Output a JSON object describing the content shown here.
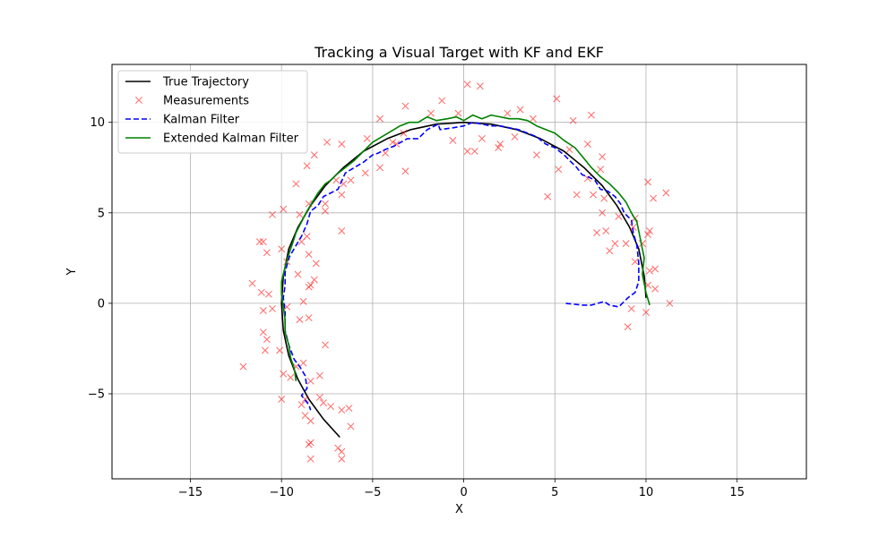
{
  "chart_data": {
    "type": "line",
    "title": "Tracking a Visual Target with KF and EKF",
    "xlabel": "X",
    "ylabel": "Y",
    "xlim": [
      -19.3,
      18.8
    ],
    "ylim": [
      -9.7,
      13.2
    ],
    "xticks": [
      -15,
      -10,
      -5,
      0,
      5,
      10,
      15
    ],
    "yticks": [
      -5,
      0,
      5,
      10
    ],
    "grid": true,
    "legend_position": "upper-left",
    "series": [
      {
        "name": "True Trajectory",
        "kind": "line",
        "color": "#000000",
        "dash": "solid",
        "points": [
          [
            10.0,
            0.3
          ],
          [
            9.9,
            1.5
          ],
          [
            9.6,
            3.0
          ],
          [
            9.1,
            4.2
          ],
          [
            8.4,
            5.4
          ],
          [
            7.6,
            6.5
          ],
          [
            6.6,
            7.5
          ],
          [
            5.5,
            8.4
          ],
          [
            4.2,
            9.1
          ],
          [
            2.9,
            9.6
          ],
          [
            1.5,
            9.9
          ],
          [
            0.0,
            10.0
          ],
          [
            -1.5,
            9.9
          ],
          [
            -2.9,
            9.6
          ],
          [
            -4.2,
            9.1
          ],
          [
            -5.5,
            8.4
          ],
          [
            -6.6,
            7.5
          ],
          [
            -7.6,
            6.5
          ],
          [
            -8.4,
            5.4
          ],
          [
            -9.1,
            4.2
          ],
          [
            -9.6,
            3.0
          ],
          [
            -9.9,
            1.5
          ],
          [
            -10.0,
            0.0
          ],
          [
            -9.9,
            -1.5
          ],
          [
            -9.6,
            -2.9
          ],
          [
            -9.1,
            -4.2
          ],
          [
            -8.5,
            -5.3
          ],
          [
            -7.7,
            -6.4
          ],
          [
            -6.8,
            -7.4
          ]
        ]
      },
      {
        "name": "Measurements",
        "kind": "scatter",
        "color": "#ff0000",
        "marker": "x",
        "points": [
          [
            10.1,
            1.0
          ],
          [
            10.5,
            0.8
          ],
          [
            11.3,
            0.0
          ],
          [
            9.2,
            -0.3
          ],
          [
            9.0,
            -1.3
          ],
          [
            10.0,
            -0.5
          ],
          [
            10.2,
            1.8
          ],
          [
            10.5,
            1.9
          ],
          [
            9.4,
            2.3
          ],
          [
            9.8,
            3.3
          ],
          [
            10.1,
            3.8
          ],
          [
            10.2,
            4.0
          ],
          [
            8.9,
            3.3
          ],
          [
            9.3,
            4.2
          ],
          [
            10.4,
            5.8
          ],
          [
            11.1,
            6.1
          ],
          [
            10.1,
            6.7
          ],
          [
            9.4,
            4.7
          ],
          [
            8.5,
            4.8
          ],
          [
            7.6,
            5.0
          ],
          [
            7.8,
            4.0
          ],
          [
            8.3,
            3.3
          ],
          [
            8.0,
            2.9
          ],
          [
            7.3,
            3.9
          ],
          [
            6.2,
            6.0
          ],
          [
            7.1,
            6.0
          ],
          [
            7.7,
            5.8
          ],
          [
            6.8,
            6.9
          ],
          [
            7.5,
            7.4
          ],
          [
            7.6,
            8.1
          ],
          [
            6.8,
            8.8
          ],
          [
            7.0,
            10.4
          ],
          [
            6.0,
            10.1
          ],
          [
            5.1,
            11.3
          ],
          [
            5.8,
            8.5
          ],
          [
            5.2,
            7.4
          ],
          [
            4.6,
            5.9
          ],
          [
            4.0,
            8.2
          ],
          [
            3.8,
            10.2
          ],
          [
            3.1,
            10.7
          ],
          [
            2.4,
            10.5
          ],
          [
            2.8,
            9.2
          ],
          [
            2.0,
            8.8
          ],
          [
            1.9,
            8.6
          ],
          [
            1.0,
            9.1
          ],
          [
            0.6,
            8.4
          ],
          [
            0.2,
            8.4
          ],
          [
            -0.6,
            9.0
          ],
          [
            -0.3,
            10.5
          ],
          [
            0.9,
            12.0
          ],
          [
            0.2,
            12.1
          ],
          [
            -1.2,
            11.2
          ],
          [
            -1.8,
            10.5
          ],
          [
            -3.2,
            10.9
          ],
          [
            -3.3,
            9.4
          ],
          [
            -3.7,
            8.8
          ],
          [
            -3.2,
            7.3
          ],
          [
            -3.9,
            8.9
          ],
          [
            -4.3,
            8.3
          ],
          [
            -4.6,
            10.2
          ],
          [
            -4.6,
            7.5
          ],
          [
            -5.3,
            9.1
          ],
          [
            -5.4,
            7.2
          ],
          [
            -6.2,
            6.8
          ],
          [
            -6.6,
            6.6
          ],
          [
            -6.7,
            6.0
          ],
          [
            -6.7,
            8.8
          ],
          [
            -7.0,
            6.8
          ],
          [
            -7.5,
            8.9
          ],
          [
            -8.2,
            8.2
          ],
          [
            -8.6,
            7.6
          ],
          [
            -7.6,
            5.5
          ],
          [
            -7.6,
            5.1
          ],
          [
            -8.5,
            5.5
          ],
          [
            -9.2,
            6.6
          ],
          [
            -8.6,
            3.7
          ],
          [
            -8.9,
            3.4
          ],
          [
            -9.0,
            4.9
          ],
          [
            -9.9,
            5.2
          ],
          [
            -10.5,
            4.9
          ],
          [
            -10.0,
            3.0
          ],
          [
            -11.0,
            3.4
          ],
          [
            -11.2,
            3.4
          ],
          [
            -10.8,
            2.8
          ],
          [
            -9.7,
            2.3
          ],
          [
            -9.1,
            1.6
          ],
          [
            -8.4,
            1.0
          ],
          [
            -8.1,
            2.2
          ],
          [
            -8.5,
            2.7
          ],
          [
            -8.2,
            1.3
          ],
          [
            -8.5,
            0.9
          ],
          [
            -8.8,
            0.1
          ],
          [
            -8.5,
            -0.8
          ],
          [
            -9.0,
            -0.9
          ],
          [
            -9.7,
            -0.2
          ],
          [
            -10.5,
            -0.3
          ],
          [
            -10.7,
            0.5
          ],
          [
            -11.1,
            0.6
          ],
          [
            -11.0,
            -0.4
          ],
          [
            -11.6,
            1.1
          ],
          [
            -11.0,
            -1.6
          ],
          [
            -10.8,
            -2.0
          ],
          [
            -10.9,
            -2.6
          ],
          [
            -10.1,
            -2.6
          ],
          [
            -9.9,
            -3.9
          ],
          [
            -9.5,
            -4.1
          ],
          [
            -9.2,
            -3.5
          ],
          [
            -8.8,
            -3.3
          ],
          [
            -8.4,
            -4.3
          ],
          [
            -7.9,
            -4.0
          ],
          [
            -7.6,
            -2.3
          ],
          [
            -7.9,
            -5.2
          ],
          [
            -7.7,
            -5.5
          ],
          [
            -8.7,
            -5.3
          ],
          [
            -8.9,
            -5.6
          ],
          [
            -8.7,
            -6.2
          ],
          [
            -8.4,
            -6.5
          ],
          [
            -7.3,
            -5.7
          ],
          [
            -6.7,
            -5.9
          ],
          [
            -6.3,
            -5.8
          ],
          [
            -6.2,
            -6.8
          ],
          [
            -6.9,
            -8.0
          ],
          [
            -6.7,
            -8.2
          ],
          [
            -6.7,
            -8.6
          ],
          [
            -8.4,
            -7.7
          ],
          [
            -8.5,
            -7.8
          ],
          [
            -8.4,
            -8.6
          ],
          [
            -10.0,
            -5.3
          ],
          [
            -12.1,
            -3.5
          ],
          [
            -6.7,
            4.0
          ]
        ]
      },
      {
        "name": "Kalman Filter",
        "kind": "line",
        "color": "#0000ff",
        "dash": "dashed",
        "points": [
          [
            5.6,
            0.0
          ],
          [
            6.5,
            -0.1
          ],
          [
            7.0,
            -0.1
          ],
          [
            7.7,
            0.1
          ],
          [
            8.0,
            -0.1
          ],
          [
            8.5,
            -0.2
          ],
          [
            9.0,
            0.3
          ],
          [
            9.4,
            0.6
          ],
          [
            9.6,
            1.2
          ],
          [
            9.6,
            2.2
          ],
          [
            9.5,
            3.2
          ],
          [
            9.3,
            3.9
          ],
          [
            9.2,
            4.6
          ],
          [
            8.8,
            5.0
          ],
          [
            8.6,
            5.5
          ],
          [
            8.3,
            5.9
          ],
          [
            7.9,
            6.2
          ],
          [
            7.5,
            6.3
          ],
          [
            7.2,
            6.8
          ],
          [
            6.8,
            7.0
          ],
          [
            6.5,
            7.1
          ],
          [
            6.2,
            7.5
          ],
          [
            5.9,
            7.8
          ],
          [
            5.5,
            8.2
          ],
          [
            5.0,
            8.6
          ],
          [
            4.5,
            8.8
          ],
          [
            4.0,
            9.2
          ],
          [
            3.5,
            9.4
          ],
          [
            3.0,
            9.6
          ],
          [
            2.5,
            9.7
          ],
          [
            2.0,
            9.8
          ],
          [
            1.5,
            9.8
          ],
          [
            1.0,
            9.9
          ],
          [
            0.5,
            10.0
          ],
          [
            0.0,
            9.8
          ],
          [
            -0.6,
            9.7
          ],
          [
            -1.3,
            9.6
          ],
          [
            -1.4,
            9.9
          ],
          [
            -2.0,
            9.6
          ],
          [
            -2.5,
            9.1
          ],
          [
            -3.1,
            9.1
          ],
          [
            -3.8,
            8.7
          ],
          [
            -4.3,
            8.5
          ],
          [
            -4.7,
            8.3
          ],
          [
            -5.0,
            8.2
          ],
          [
            -5.5,
            7.8
          ],
          [
            -6.0,
            7.5
          ],
          [
            -6.5,
            7.2
          ],
          [
            -6.9,
            6.3
          ],
          [
            -7.3,
            6.1
          ],
          [
            -7.7,
            5.9
          ],
          [
            -8.0,
            5.4
          ],
          [
            -8.4,
            5.1
          ],
          [
            -8.6,
            4.4
          ],
          [
            -8.9,
            3.7
          ],
          [
            -9.2,
            3.2
          ],
          [
            -9.6,
            2.5
          ],
          [
            -9.8,
            1.7
          ],
          [
            -9.8,
            1.0
          ],
          [
            -9.9,
            0.3
          ],
          [
            -9.8,
            -0.5
          ],
          [
            -9.8,
            -1.5
          ],
          [
            -9.6,
            -2.3
          ],
          [
            -9.3,
            -3.1
          ],
          [
            -9.0,
            -3.5
          ],
          [
            -8.7,
            -4.0
          ],
          [
            -8.6,
            -4.7
          ],
          [
            -8.9,
            -5.1
          ],
          [
            -8.5,
            -5.6
          ],
          [
            -8.4,
            -5.9
          ]
        ]
      },
      {
        "name": "Extended Kalman Filter",
        "kind": "line",
        "color": "#008000",
        "dash": "solid",
        "points": [
          [
            10.2,
            -0.1
          ],
          [
            10.0,
            0.6
          ],
          [
            9.8,
            1.6
          ],
          [
            9.9,
            2.5
          ],
          [
            9.7,
            3.5
          ],
          [
            9.5,
            4.5
          ],
          [
            9.2,
            5.0
          ],
          [
            8.9,
            5.6
          ],
          [
            8.5,
            6.1
          ],
          [
            8.0,
            6.6
          ],
          [
            7.5,
            7.0
          ],
          [
            7.0,
            7.5
          ],
          [
            6.6,
            8.0
          ],
          [
            6.1,
            8.6
          ],
          [
            5.5,
            9.0
          ],
          [
            5.0,
            9.4
          ],
          [
            4.5,
            9.6
          ],
          [
            4.0,
            9.8
          ],
          [
            3.5,
            10.1
          ],
          [
            3.0,
            10.2
          ],
          [
            2.5,
            10.2
          ],
          [
            2.0,
            10.3
          ],
          [
            1.5,
            10.4
          ],
          [
            1.0,
            10.2
          ],
          [
            0.5,
            10.4
          ],
          [
            0.0,
            10.1
          ],
          [
            -0.4,
            10.3
          ],
          [
            -0.9,
            10.2
          ],
          [
            -1.5,
            10.1
          ],
          [
            -2.0,
            10.3
          ],
          [
            -2.5,
            10.0
          ],
          [
            -3.0,
            10.0
          ],
          [
            -3.5,
            9.8
          ],
          [
            -4.0,
            9.5
          ],
          [
            -4.5,
            9.2
          ],
          [
            -5.0,
            8.9
          ],
          [
            -5.5,
            8.4
          ],
          [
            -6.0,
            7.9
          ],
          [
            -6.5,
            7.5
          ],
          [
            -7.0,
            7.1
          ],
          [
            -7.3,
            6.8
          ],
          [
            -7.6,
            6.6
          ],
          [
            -8.0,
            6.1
          ],
          [
            -8.3,
            5.6
          ],
          [
            -8.6,
            5.1
          ],
          [
            -8.9,
            4.5
          ],
          [
            -9.2,
            3.9
          ],
          [
            -9.4,
            3.3
          ],
          [
            -9.6,
            2.7
          ],
          [
            -9.8,
            2.0
          ],
          [
            -10.0,
            1.2
          ],
          [
            -10.0,
            0.5
          ],
          [
            -9.9,
            -0.2
          ],
          [
            -9.8,
            -0.9
          ],
          [
            -9.8,
            -1.6
          ],
          [
            -9.6,
            -2.3
          ],
          [
            -9.5,
            -3.0
          ],
          [
            -9.3,
            -3.6
          ],
          [
            -9.2,
            -4.3
          ]
        ]
      }
    ]
  }
}
